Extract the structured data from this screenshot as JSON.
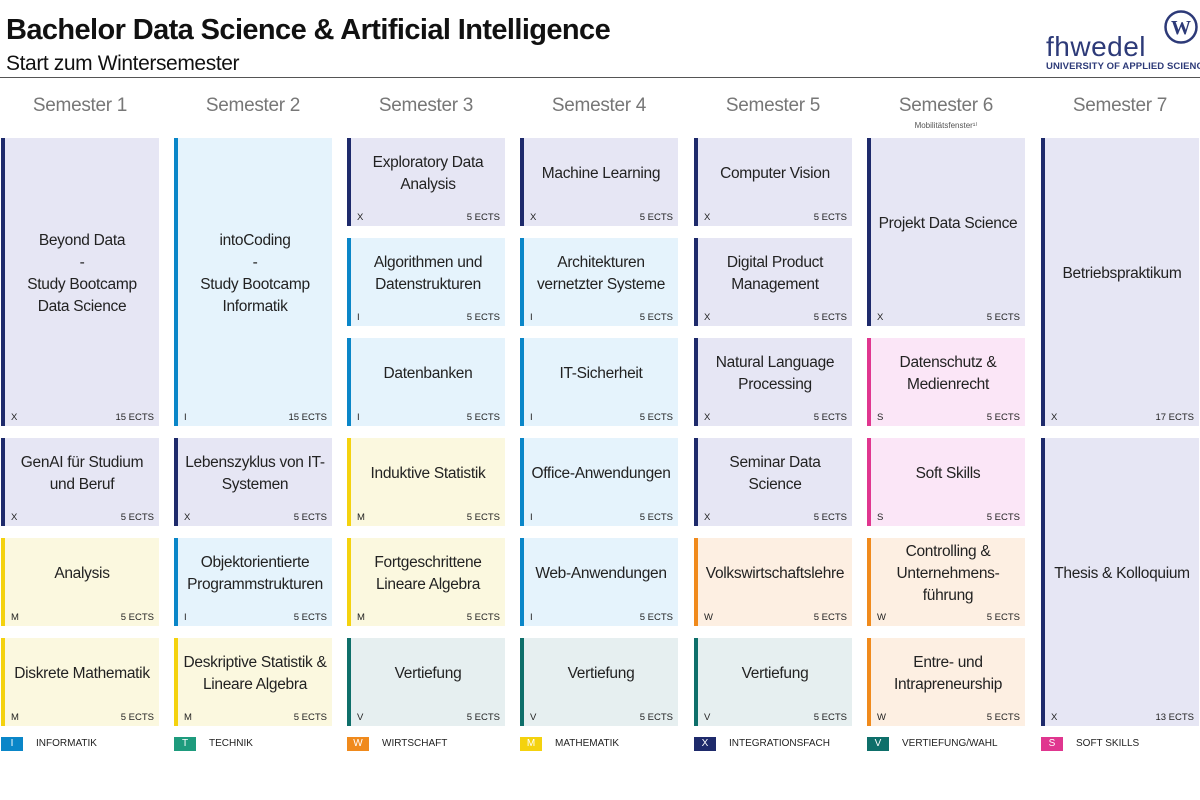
{
  "header": {
    "title": "Bachelor Data Science & Artificial Intelligence",
    "subtitle": "Start zum Wintersemester",
    "logo": {
      "word": "fhwedel",
      "seal_letter": "W",
      "tagline": "UNIVERSITY OF APPLIED SCIENCES"
    }
  },
  "semesters": [
    {
      "label": "Semester 1",
      "note": ""
    },
    {
      "label": "Semester 2",
      "note": ""
    },
    {
      "label": "Semester 3",
      "note": ""
    },
    {
      "label": "Semester 4",
      "note": ""
    },
    {
      "label": "Semester 5",
      "note": ""
    },
    {
      "label": "Semester 6",
      "note": "Mobilitätsfenster¹⁾"
    },
    {
      "label": "Semester 7",
      "note": ""
    }
  ],
  "categories": {
    "I": {
      "label": "INFORMATIK",
      "accent": "#0a86c8",
      "bg": "#e5f3fc"
    },
    "T": {
      "label": "TECHNIK",
      "accent": "#1e9b7d",
      "bg": "#e3f4ef"
    },
    "W": {
      "label": "WIRTSCHAFT",
      "accent": "#f08a1c",
      "bg": "#fdefe2"
    },
    "M": {
      "label": "MATHEMATIK",
      "accent": "#f4d20e",
      "bg": "#fbf8df"
    },
    "X": {
      "label": "INTEGRATIONSFACH",
      "accent": "#1e2a6b",
      "bg": "#e6e6f4"
    },
    "V": {
      "label": "VERTIEFUNG/WAHL",
      "accent": "#0e6f6a",
      "bg": "#e6eff0"
    },
    "S": {
      "label": "SOFT SKILLS",
      "accent": "#e0368f",
      "bg": "#fbe6f7"
    }
  },
  "legend": [
    "I",
    "T",
    "W",
    "M",
    "X",
    "V",
    "S"
  ],
  "modules": [
    {
      "sem": 1,
      "row": 0,
      "span": 3,
      "title": "Beyond Data\n-\nStudy Bootcamp\nData Science",
      "code": "X",
      "ects": "15 ECTS"
    },
    {
      "sem": 1,
      "row": 3,
      "span": 1,
      "title": "GenAI für Studium und Beruf",
      "code": "X",
      "ects": "5 ECTS"
    },
    {
      "sem": 1,
      "row": 4,
      "span": 1,
      "title": "Analysis",
      "code": "M",
      "ects": "5 ECTS"
    },
    {
      "sem": 1,
      "row": 5,
      "span": 1,
      "title": "Diskrete Mathematik",
      "code": "M",
      "ects": "5 ECTS"
    },
    {
      "sem": 2,
      "row": 0,
      "span": 3,
      "title": "intoCoding\n-\nStudy Bootcamp\nInformatik",
      "code": "I",
      "ects": "15 ECTS"
    },
    {
      "sem": 2,
      "row": 3,
      "span": 1,
      "title": "Lebenszyklus von IT-\nSystemen",
      "code": "X",
      "ects": "5 ECTS"
    },
    {
      "sem": 2,
      "row": 4,
      "span": 1,
      "title": "Objektorientierte\nProgrammstrukturen",
      "code": "I",
      "ects": "5 ECTS"
    },
    {
      "sem": 2,
      "row": 5,
      "span": 1,
      "title": "Deskriptive Statistik &\nLineare Algebra",
      "code": "M",
      "ects": "5 ECTS"
    },
    {
      "sem": 3,
      "row": 0,
      "span": 1,
      "title": "Exploratory Data\nAnalysis",
      "code": "X",
      "ects": "5 ECTS"
    },
    {
      "sem": 3,
      "row": 1,
      "span": 1,
      "title": "Algorithmen und\nDatenstrukturen",
      "code": "I",
      "ects": "5 ECTS"
    },
    {
      "sem": 3,
      "row": 2,
      "span": 1,
      "title": "Datenbanken",
      "code": "I",
      "ects": "5 ECTS"
    },
    {
      "sem": 3,
      "row": 3,
      "span": 1,
      "title": "Induktive Statistik",
      "code": "M",
      "ects": "5 ECTS"
    },
    {
      "sem": 3,
      "row": 4,
      "span": 1,
      "title": "Fortgeschrittene\nLineare Algebra",
      "code": "M",
      "ects": "5 ECTS"
    },
    {
      "sem": 3,
      "row": 5,
      "span": 1,
      "title": "Vertiefung",
      "code": "V",
      "ects": "5 ECTS"
    },
    {
      "sem": 4,
      "row": 0,
      "span": 1,
      "title": "Machine Learning",
      "code": "X",
      "ects": "5 ECTS"
    },
    {
      "sem": 4,
      "row": 1,
      "span": 1,
      "title": "Architekturen\nvernetzter Systeme",
      "code": "I",
      "ects": "5 ECTS"
    },
    {
      "sem": 4,
      "row": 2,
      "span": 1,
      "title": "IT-Sicherheit",
      "code": "I",
      "ects": "5 ECTS"
    },
    {
      "sem": 4,
      "row": 3,
      "span": 1,
      "title": "Office-Anwendungen",
      "code": "I",
      "ects": "5 ECTS"
    },
    {
      "sem": 4,
      "row": 4,
      "span": 1,
      "title": "Web-Anwendungen",
      "code": "I",
      "ects": "5 ECTS"
    },
    {
      "sem": 4,
      "row": 5,
      "span": 1,
      "title": "Vertiefung",
      "code": "V",
      "ects": "5 ECTS"
    },
    {
      "sem": 5,
      "row": 0,
      "span": 1,
      "title": "Computer Vision",
      "code": "X",
      "ects": "5 ECTS"
    },
    {
      "sem": 5,
      "row": 1,
      "span": 1,
      "title": "Digital Product\nManagement",
      "code": "X",
      "ects": "5 ECTS"
    },
    {
      "sem": 5,
      "row": 2,
      "span": 1,
      "title": "Natural Language\nProcessing",
      "code": "X",
      "ects": "5 ECTS"
    },
    {
      "sem": 5,
      "row": 3,
      "span": 1,
      "title": "Seminar Data Science",
      "code": "X",
      "ects": "5 ECTS"
    },
    {
      "sem": 5,
      "row": 4,
      "span": 1,
      "title": "Volkswirtschaftslehre",
      "code": "W",
      "ects": "5 ECTS"
    },
    {
      "sem": 5,
      "row": 5,
      "span": 1,
      "title": "Vertiefung",
      "code": "V",
      "ects": "5 ECTS"
    },
    {
      "sem": 6,
      "row": 0,
      "span": 2,
      "title": "Projekt Data Science",
      "code": "X",
      "ects": "5 ECTS"
    },
    {
      "sem": 6,
      "row": 2,
      "span": 1,
      "title": "Datenschutz &\nMedienrecht",
      "code": "S",
      "ects": "5 ECTS"
    },
    {
      "sem": 6,
      "row": 3,
      "span": 1,
      "title": "Soft Skills",
      "code": "S",
      "ects": "5 ECTS"
    },
    {
      "sem": 6,
      "row": 4,
      "span": 1,
      "title": "Controlling &\nUnternehmens-\nführung",
      "code": "W",
      "ects": "5 ECTS"
    },
    {
      "sem": 6,
      "row": 5,
      "span": 1,
      "title": "Entre- und\nIntrapreneurship",
      "code": "W",
      "ects": "5 ECTS"
    },
    {
      "sem": 7,
      "row": 0,
      "span": 3,
      "title": "Betriebspraktikum",
      "code": "X",
      "ects": "17 ECTS"
    },
    {
      "sem": 7,
      "row": 3,
      "span": 3,
      "title": "Thesis & Kolloquium",
      "code": "X",
      "ects": "13 ECTS"
    }
  ]
}
